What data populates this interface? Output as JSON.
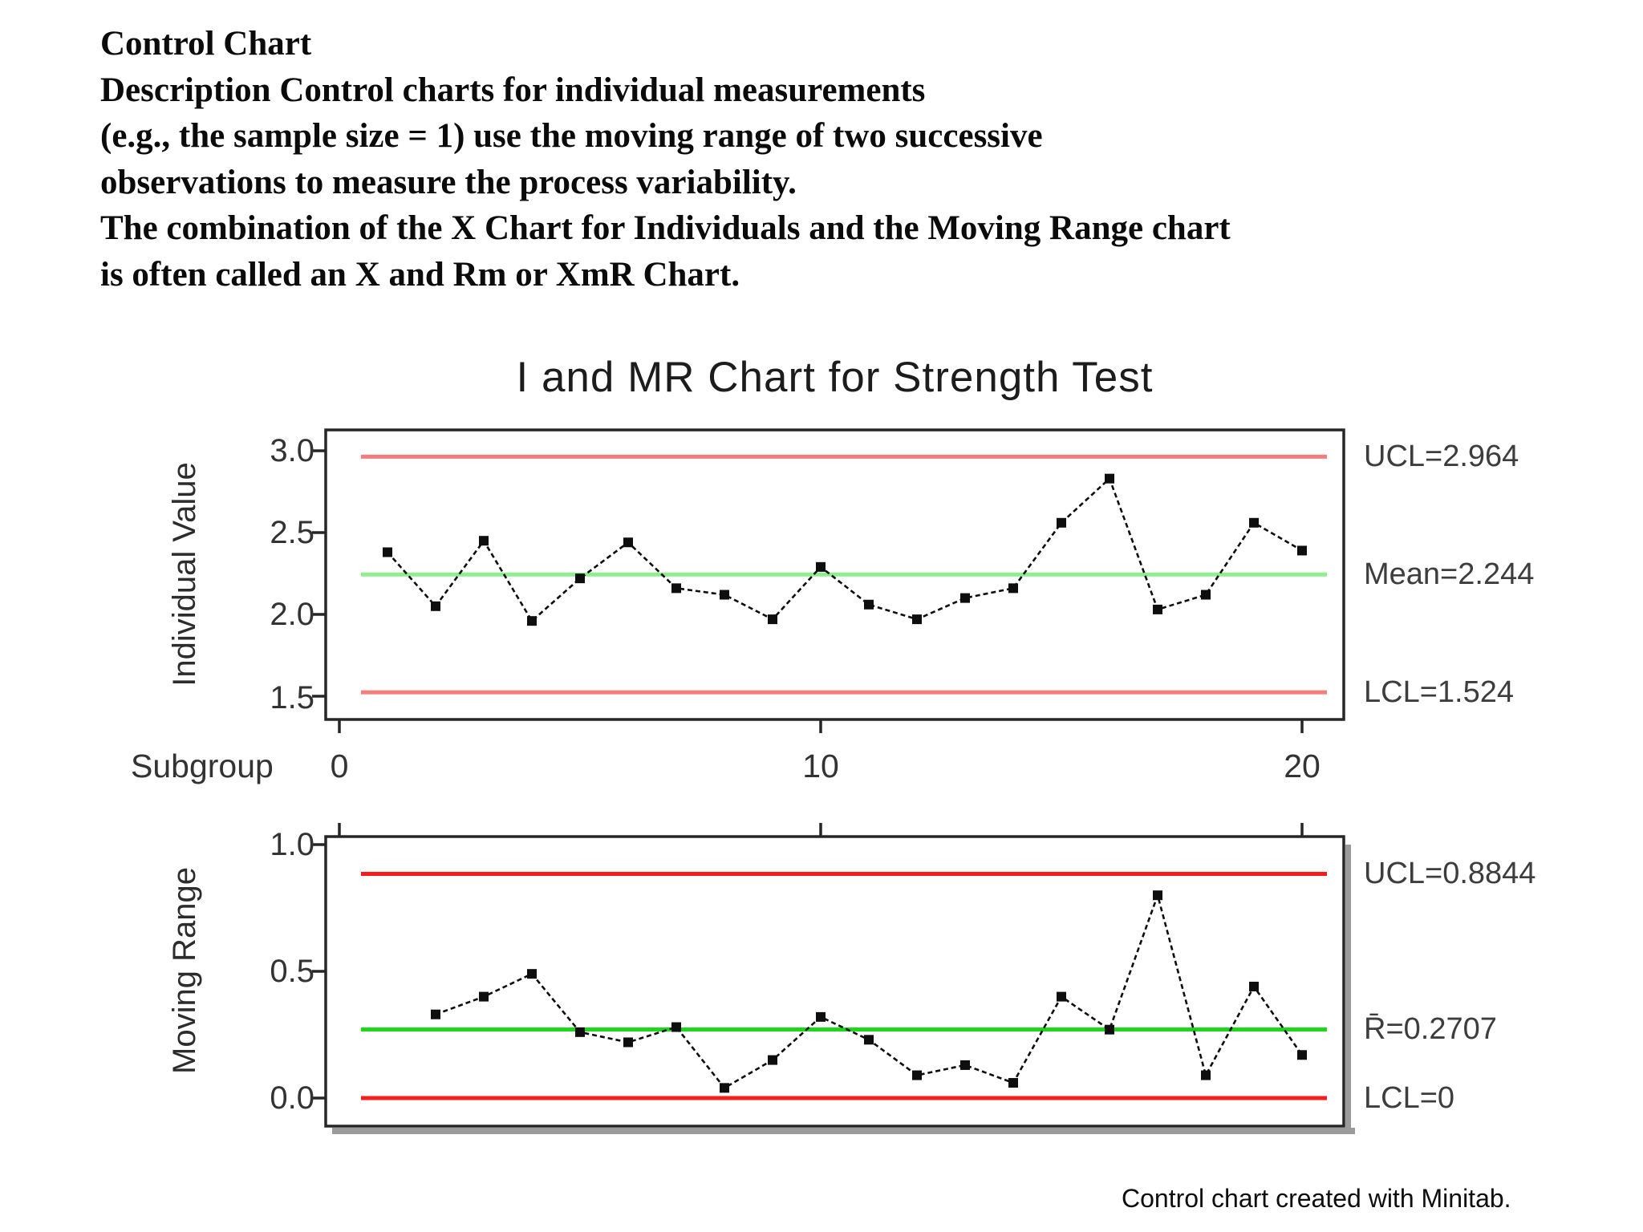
{
  "header": {
    "lines": [
      "Control Chart",
      "Description Control charts for individual measurements",
      "(e.g., the sample size = 1) use the moving range of two successive",
      "observations to measure the process variability.",
      "The combination of the X Chart for Individuals and the Moving Range chart",
      "is often called an X and Rm or XmR Chart."
    ]
  },
  "title": "I and MR Chart for Strength Test",
  "caption": "Control chart created with Minitab.",
  "axis": {
    "xlabel": "Subgroup",
    "xticks": [
      "0",
      "10",
      "20"
    ],
    "xtick_values": [
      0,
      10,
      20
    ]
  },
  "chart_data": [
    {
      "type": "line",
      "panel": "individuals",
      "title": "I and MR Chart for Strength Test",
      "xlabel": "Subgroup",
      "ylabel": "Individual Value",
      "x": [
        1,
        2,
        3,
        4,
        5,
        6,
        7,
        8,
        9,
        10,
        11,
        12,
        13,
        14,
        15,
        16,
        17,
        18,
        19,
        20
      ],
      "values": [
        2.38,
        2.05,
        2.45,
        1.96,
        2.22,
        2.44,
        2.16,
        2.12,
        1.97,
        2.29,
        2.06,
        1.97,
        2.1,
        2.16,
        2.56,
        2.83,
        2.03,
        2.12,
        2.56,
        2.39
      ],
      "ytick_labels": [
        "3.0",
        "2.5",
        "2.0",
        "1.5"
      ],
      "ytick_values": [
        3.0,
        2.5,
        2.0,
        1.5
      ],
      "ylim": [
        1.36,
        3.13
      ],
      "xlim": [
        -0.3,
        20.9
      ],
      "grid": false,
      "marker": "square",
      "line_color": "#0e0e0e",
      "lines": {
        "ucl": {
          "label": "UCL=2.964",
          "value": 2.964,
          "color": "#f47e7e"
        },
        "center": {
          "label": "Mean=2.244",
          "value": 2.244,
          "color": "#8fee8f"
        },
        "lcl": {
          "label": "LCL=1.524",
          "value": 1.524,
          "color": "#f47e7e"
        }
      }
    },
    {
      "type": "line",
      "panel": "moving_range",
      "xlabel": "Subgroup",
      "ylabel": "Moving Range",
      "x": [
        2,
        3,
        4,
        5,
        6,
        7,
        8,
        9,
        10,
        11,
        12,
        13,
        14,
        15,
        16,
        17,
        18,
        19,
        20
      ],
      "values": [
        0.33,
        0.4,
        0.49,
        0.26,
        0.22,
        0.28,
        0.04,
        0.15,
        0.32,
        0.23,
        0.09,
        0.13,
        0.06,
        0.4,
        0.27,
        0.8,
        0.09,
        0.44,
        0.17
      ],
      "ytick_labels": [
        "1.0",
        "0.5",
        "0.0"
      ],
      "ytick_values": [
        1.0,
        0.5,
        0.0
      ],
      "ylim": [
        -0.11,
        1.03
      ],
      "xlim": [
        -0.3,
        20.9
      ],
      "grid": false,
      "marker": "square",
      "line_color": "#0e0e0e",
      "lines": {
        "ucl": {
          "label": "UCL=0.8844",
          "value": 0.8844,
          "color": "#fa1b1b"
        },
        "center": {
          "label": "R̄=0.2707",
          "value": 0.2707,
          "color": "#1bd81b"
        },
        "lcl": {
          "label": "LCL=0",
          "value": 0,
          "color": "#fa1b1b"
        }
      }
    }
  ]
}
